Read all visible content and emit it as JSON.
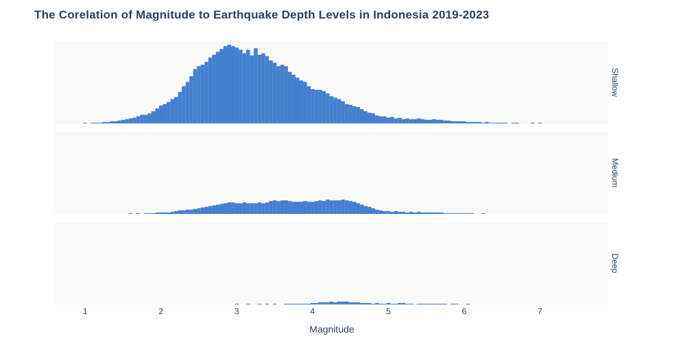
{
  "chart_data": {
    "type": "bar",
    "title": "The Corelation of Magnitude to Earthquake Depth Levels in Indonesia 2019-2023",
    "xlabel": "Magnitude",
    "ylabel": "",
    "x_ticks": [
      1,
      2,
      3,
      4,
      5,
      6,
      7
    ],
    "xlim": [
      0.6,
      7.9
    ],
    "bin_width": 0.05,
    "bar_color": "#4480cf",
    "plot_bg": "#f9f9f7",
    "text_color": "#2a3f5f",
    "shared_y_max": 115,
    "facets": [
      {
        "name": "Shallow",
        "x": [
          1.0,
          1.05,
          1.1,
          1.15,
          1.2,
          1.25,
          1.3,
          1.35,
          1.4,
          1.45,
          1.5,
          1.55,
          1.6,
          1.65,
          1.7,
          1.75,
          1.8,
          1.85,
          1.9,
          1.95,
          2.0,
          2.05,
          2.1,
          2.15,
          2.2,
          2.25,
          2.3,
          2.35,
          2.4,
          2.45,
          2.5,
          2.55,
          2.6,
          2.65,
          2.7,
          2.75,
          2.8,
          2.85,
          2.9,
          2.95,
          3.0,
          3.05,
          3.1,
          3.15,
          3.2,
          3.25,
          3.3,
          3.35,
          3.4,
          3.45,
          3.5,
          3.55,
          3.6,
          3.65,
          3.7,
          3.75,
          3.8,
          3.85,
          3.9,
          3.95,
          4.0,
          4.05,
          4.1,
          4.15,
          4.2,
          4.25,
          4.3,
          4.35,
          4.4,
          4.45,
          4.5,
          4.55,
          4.6,
          4.65,
          4.7,
          4.75,
          4.8,
          4.85,
          4.9,
          4.95,
          5.0,
          5.05,
          5.1,
          5.15,
          5.2,
          5.25,
          5.3,
          5.35,
          5.4,
          5.45,
          5.5,
          5.55,
          5.6,
          5.65,
          5.7,
          5.75,
          5.8,
          5.85,
          5.9,
          5.95,
          6.0,
          6.05,
          6.1,
          6.15,
          6.2,
          6.25,
          6.3,
          6.35,
          6.4,
          6.45,
          6.5,
          6.55,
          6.6,
          6.65,
          6.7,
          6.75,
          6.8,
          6.85,
          6.9,
          6.95,
          7.0,
          7.05,
          7.1,
          7.15,
          7.2,
          7.25
        ],
        "values": [
          1,
          0,
          1,
          1,
          1,
          2,
          2,
          3,
          3,
          4,
          5,
          6,
          7,
          8,
          10,
          12,
          12,
          14,
          17,
          21,
          25,
          27,
          30,
          34,
          37,
          44,
          52,
          58,
          66,
          76,
          80,
          82,
          86,
          92,
          96,
          100,
          104,
          108,
          110,
          108,
          106,
          103,
          98,
          103,
          95,
          105,
          96,
          98,
          94,
          88,
          85,
          80,
          82,
          80,
          72,
          68,
          64,
          60,
          58,
          52,
          48,
          47,
          47,
          45,
          42,
          38,
          36,
          34,
          31,
          27,
          26,
          24,
          23,
          20,
          17,
          15,
          14,
          11,
          10,
          10,
          8,
          9,
          7,
          8,
          6,
          7,
          6,
          6,
          7,
          6,
          5,
          5,
          6,
          5,
          5,
          4,
          4,
          3,
          3,
          3,
          3,
          2,
          2,
          2,
          2,
          1,
          2,
          1,
          1,
          1,
          1,
          1,
          0,
          1,
          1,
          0,
          0,
          0,
          1,
          0,
          1,
          0,
          0,
          0,
          0,
          0
        ]
      },
      {
        "name": "Medium",
        "x": [
          1.6,
          1.65,
          1.7,
          1.75,
          1.8,
          1.85,
          1.9,
          1.95,
          2.0,
          2.05,
          2.1,
          2.15,
          2.2,
          2.25,
          2.3,
          2.35,
          2.4,
          2.45,
          2.5,
          2.55,
          2.6,
          2.65,
          2.7,
          2.75,
          2.8,
          2.85,
          2.9,
          2.95,
          3.0,
          3.05,
          3.1,
          3.15,
          3.2,
          3.25,
          3.3,
          3.35,
          3.4,
          3.45,
          3.5,
          3.55,
          3.6,
          3.65,
          3.7,
          3.75,
          3.8,
          3.85,
          3.9,
          3.95,
          4.0,
          4.05,
          4.1,
          4.15,
          4.2,
          4.25,
          4.3,
          4.35,
          4.4,
          4.45,
          4.5,
          4.55,
          4.6,
          4.65,
          4.7,
          4.75,
          4.8,
          4.85,
          4.9,
          4.95,
          5.0,
          5.05,
          5.1,
          5.15,
          5.2,
          5.25,
          5.3,
          5.35,
          5.4,
          5.45,
          5.5,
          5.55,
          5.6,
          5.65,
          5.7,
          5.75,
          5.8,
          5.85,
          5.9,
          5.95,
          6.0,
          6.05,
          6.1,
          6.15,
          6.2,
          6.25
        ],
        "values": [
          1,
          0,
          1,
          0,
          1,
          1,
          1,
          2,
          2,
          2,
          2,
          3,
          4,
          5,
          5,
          6,
          6,
          7,
          8,
          9,
          10,
          11,
          12,
          13,
          14,
          15,
          16,
          16,
          15,
          15,
          16,
          15,
          15,
          15,
          16,
          15,
          16,
          18,
          19,
          18,
          19,
          19,
          18,
          17,
          17,
          17,
          18,
          17,
          17,
          18,
          19,
          18,
          20,
          19,
          19,
          19,
          20,
          19,
          18,
          17,
          15,
          13,
          11,
          10,
          8,
          6,
          5,
          4,
          4,
          3,
          4,
          3,
          3,
          2,
          3,
          2,
          3,
          2,
          2,
          2,
          2,
          2,
          2,
          1,
          1,
          1,
          1,
          1,
          1,
          1,
          1,
          0,
          0,
          1
        ]
      },
      {
        "name": "Deep",
        "x": [
          3.0,
          3.05,
          3.1,
          3.15,
          3.2,
          3.25,
          3.3,
          3.35,
          3.4,
          3.45,
          3.5,
          3.55,
          3.6,
          3.65,
          3.7,
          3.75,
          3.8,
          3.85,
          3.9,
          3.95,
          4.0,
          4.05,
          4.1,
          4.15,
          4.2,
          4.25,
          4.3,
          4.35,
          4.4,
          4.45,
          4.5,
          4.55,
          4.6,
          4.65,
          4.7,
          4.75,
          4.8,
          4.85,
          4.9,
          4.95,
          5.0,
          5.05,
          5.1,
          5.15,
          5.2,
          5.25,
          5.3,
          5.35,
          5.4,
          5.45,
          5.5,
          5.55,
          5.6,
          5.65,
          5.7,
          5.75,
          5.8,
          5.85,
          5.9,
          5.95,
          6.0,
          6.05
        ],
        "values": [
          1,
          0,
          0,
          1,
          0,
          0,
          1,
          0,
          1,
          0,
          1,
          0,
          0,
          1,
          1,
          1,
          1,
          1,
          1,
          1,
          2,
          2,
          3,
          3,
          3,
          4,
          3,
          4,
          4,
          4,
          3,
          3,
          3,
          2,
          2,
          2,
          1,
          2,
          1,
          1,
          2,
          1,
          1,
          2,
          2,
          1,
          1,
          0,
          1,
          1,
          1,
          1,
          1,
          1,
          1,
          1,
          0,
          1,
          1,
          0,
          0,
          1
        ]
      }
    ]
  }
}
